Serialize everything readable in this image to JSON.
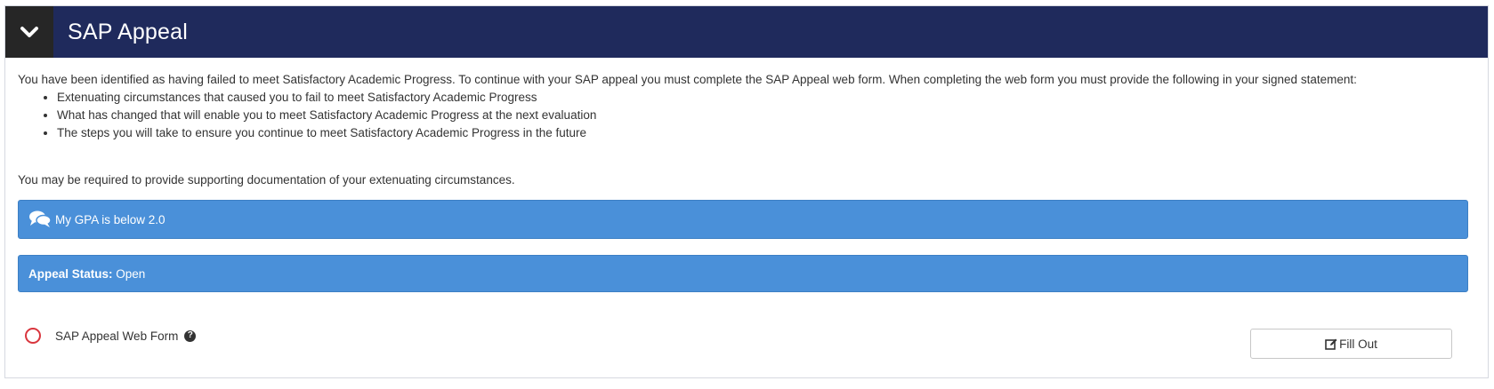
{
  "header": {
    "title": "SAP Appeal"
  },
  "body": {
    "intro": "You have been identified as having failed to meet Satisfactory Academic Progress. To continue with your SAP appeal you must complete the SAP Appeal web form. When completing the web form you must provide the following in your signed statement:",
    "requirements": [
      "Extenuating circumstances that caused you to fail to meet Satisfactory Academic Progress",
      "What has changed that will enable you to meet Satisfactory Academic Progress at the next evaluation",
      "The steps you will take to ensure you continue to meet Satisfactory Academic Progress in the future"
    ],
    "supporting": "You may be required to provide supporting documentation of your extenuating circumstances."
  },
  "reason_bar": {
    "icon": "comments-icon",
    "text": "My GPA is below 2.0"
  },
  "status_bar": {
    "label": "Appeal Status:",
    "value": "Open"
  },
  "form_item": {
    "status_icon": "incomplete-circle-icon",
    "label": "SAP Appeal Web Form",
    "help_icon": "question-circle-icon",
    "help_glyph": "?",
    "button_label": "Fill Out",
    "button_icon": "edit-icon"
  },
  "colors": {
    "header_bg": "#1f2a5c",
    "collapse_bg": "#262626",
    "info_bar": "#4a90d9",
    "incomplete_circle": "#d9363e"
  }
}
